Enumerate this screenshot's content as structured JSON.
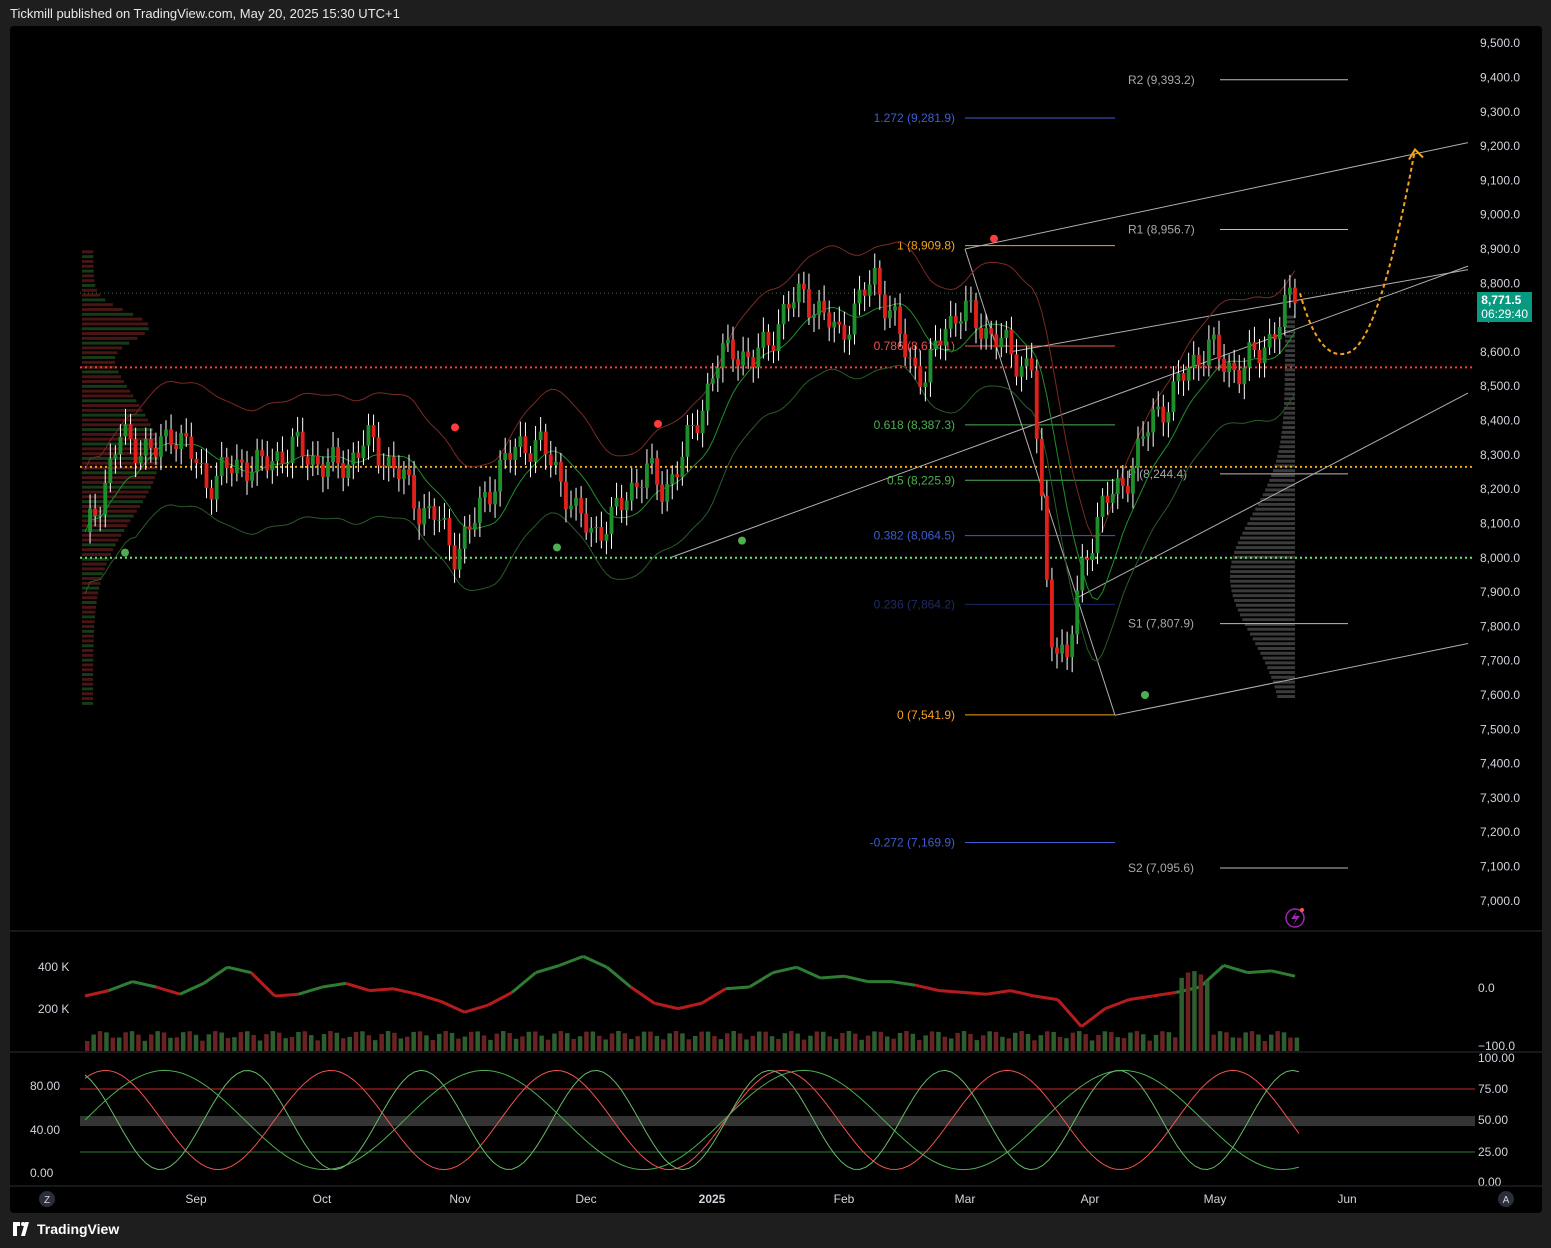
{
  "header": {
    "title": "Tickmill published on TradingView.com, May 20, 2025 15:30 UTC+1"
  },
  "footer": {
    "brand": "TradingView"
  },
  "colors": {
    "up": "#1f8f2c",
    "down": "#e0201a",
    "fib_blue": "#3f5bd1",
    "fib_orange": "#f7a21b",
    "fib_red": "#ef5350",
    "fib_green": "#4caf50",
    "price_badge": "#089981",
    "level_orange": "#f7a21b",
    "level_red": "#ff3b30",
    "level_green": "#6ee06e"
  },
  "price_badge": {
    "price": "8,771.5",
    "countdown": "06:29:40"
  },
  "scale_buttons": {
    "left": "Z",
    "right": "A"
  },
  "chart_data": [
    {
      "type": "candlestick",
      "title": "",
      "x_axis": {
        "labels": [
          "Sep",
          "Oct",
          "Nov",
          "Dec",
          "2025",
          "Feb",
          "Mar",
          "Apr",
          "May",
          "Jun"
        ]
      },
      "y_axis": {
        "range": [
          6950,
          9550
        ],
        "ticks": [
          "9,500.0",
          "9,400.0",
          "9,300.0",
          "9,200.0",
          "9,100.0",
          "9,000.0",
          "8,900.0",
          "8,800.0",
          "8,700.0",
          "8,600.0",
          "8,500.0",
          "8,400.0",
          "8,300.0",
          "8,200.0",
          "8,100.0",
          "8,000.0",
          "7,900.0",
          "7,800.0",
          "7,700.0",
          "7,600.0",
          "7,500.0",
          "7,400.0",
          "7,300.0",
          "7,200.0",
          "7,100.0",
          "7,000.0"
        ]
      },
      "price_path": [
        8050,
        8200,
        8350,
        8330,
        8300,
        8380,
        8300,
        8220,
        8250,
        8280,
        8260,
        8300,
        8320,
        8290,
        8260,
        8280,
        8340,
        8300,
        8240,
        8150,
        8120,
        8020,
        8080,
        8200,
        8280,
        8340,
        8320,
        8250,
        8120,
        8080,
        8100,
        8200,
        8250,
        8200,
        8280,
        8420,
        8560,
        8620,
        8560,
        8640,
        8720,
        8780,
        8700,
        8660,
        8720,
        8830,
        8700,
        8580,
        8520,
        8680,
        8720,
        8680,
        8640,
        8580,
        8560,
        7800,
        7700,
        8000,
        8150,
        8200,
        8300,
        8420,
        8470,
        8560,
        8620,
        8560,
        8550,
        8600,
        8680,
        8771
      ],
      "fib_levels": [
        {
          "label": "1.272 (9,281.9)",
          "value": 9281.9,
          "color": "#3f5bd1"
        },
        {
          "label": "1 (8,909.8)",
          "value": 8909.8,
          "color": "#f7a21b"
        },
        {
          "label": "0.786 (8,617.1)",
          "value": 8617.1,
          "color": "#ef5350"
        },
        {
          "label": "0.618 (8,387.3)",
          "value": 8387.3,
          "color": "#4caf50"
        },
        {
          "label": "0.5 (8,225.9)",
          "value": 8225.9,
          "color": "#4caf50"
        },
        {
          "label": "0.382 (8,064.5)",
          "value": 8064.5,
          "color": "#3f5bd1"
        },
        {
          "label": "0.236 (7,864.2)",
          "value": 7864.2,
          "color": "#1e2a66"
        },
        {
          "label": "0 (7,541.9)",
          "value": 7541.9,
          "color": "#f7a21b"
        },
        {
          "label": "-0.272 (7,169.9)",
          "value": 7169.9,
          "color": "#3f5bd1"
        }
      ],
      "pivot_levels": [
        {
          "label": "R2 (9,393.2)",
          "value": 9393.2
        },
        {
          "label": "R1 (8,956.7)",
          "value": 8956.7
        },
        {
          "label": "P (8,244.4)",
          "value": 8244.4
        },
        {
          "label": "S1 (7,807.9)",
          "value": 7807.9
        },
        {
          "label": "S2 (7,095.6)",
          "value": 7095.6
        }
      ],
      "horizontal_levels": [
        {
          "value": 8555,
          "color": "#ff3b30"
        },
        {
          "value": 8265,
          "color": "#f7a21b"
        },
        {
          "value": 8000,
          "color": "#6ee06e"
        },
        {
          "value": 8771.5,
          "color": "#3a6b3a"
        }
      ],
      "projection": {
        "color": "#f7a21b",
        "path": [
          8771,
          8600,
          8700,
          9000,
          9190
        ]
      }
    },
    {
      "type": "line",
      "title": "",
      "y_axis_left": [
        "400 K",
        "200 K"
      ],
      "y_axis_right": [
        "0.0",
        "−100.0"
      ],
      "values": [
        250,
        280,
        330,
        300,
        260,
        320,
        410,
        380,
        250,
        260,
        300,
        320,
        280,
        290,
        260,
        220,
        160,
        200,
        270,
        380,
        420,
        470,
        410,
        300,
        210,
        180,
        210,
        290,
        300,
        380,
        410,
        350,
        360,
        330,
        330,
        310,
        280,
        270,
        260,
        280,
        250,
        230,
        80,
        180,
        230,
        250,
        270,
        300,
        420,
        380,
        390,
        360
      ]
    },
    {
      "type": "line",
      "title": "",
      "y_axis_left": [
        "80.00",
        "40.00",
        "0.00"
      ],
      "y_axis_right": [
        "100.00",
        "75.00",
        "50.00",
        "25.00",
        "0.00"
      ]
    }
  ]
}
